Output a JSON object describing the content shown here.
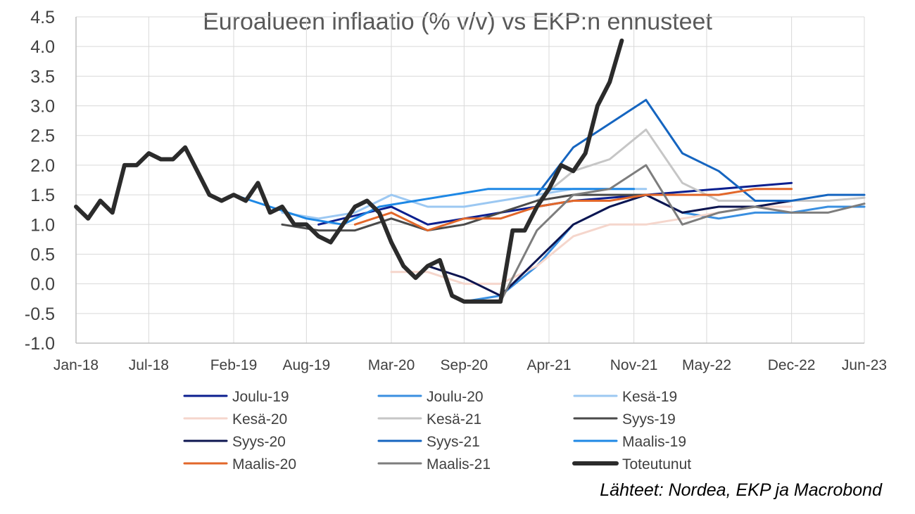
{
  "chart_data": {
    "type": "line",
    "title": "Euroalueen inflaatio (% v/v) vs EKP:n ennusteet",
    "source": "Lähteet: Nordea, EKP ja Macrobond",
    "xlabel": "",
    "ylabel": "",
    "ylim": [
      -1.0,
      4.5
    ],
    "yticks": [
      "-1.0",
      "-0.5",
      "0.0",
      "0.5",
      "1.0",
      "1.5",
      "2.0",
      "2.5",
      "3.0",
      "3.5",
      "4.0",
      "4.5"
    ],
    "xlim": [
      "2018-01",
      "2023-06"
    ],
    "xticks": [
      "Jan-18",
      "Jul-18",
      "Feb-19",
      "Aug-19",
      "Mar-20",
      "Sep-20",
      "Apr-21",
      "Nov-21",
      "May-22",
      "Dec-22",
      "Jun-23"
    ],
    "grid": "horizontal and vertical",
    "legend_placement": "bottom",
    "series": [
      {
        "name": "Joulu-19",
        "color": "#0b1f8f",
        "width": 3,
        "points": [
          [
            "2019-09",
            1.0
          ],
          [
            "2020-03",
            1.3
          ],
          [
            "2020-06",
            1.0
          ],
          [
            "2020-12",
            1.2
          ],
          [
            "2021-06",
            1.4
          ],
          [
            "2021-12",
            1.5
          ],
          [
            "2022-06",
            1.6
          ],
          [
            "2022-12",
            1.7
          ]
        ]
      },
      {
        "name": "Joulu-20",
        "color": "#3a8fe0",
        "width": 3,
        "points": [
          [
            "2020-09",
            -0.3
          ],
          [
            "2020-12",
            -0.2
          ],
          [
            "2021-03",
            0.3
          ],
          [
            "2021-06",
            1.0
          ],
          [
            "2021-09",
            1.3
          ],
          [
            "2021-12",
            1.5
          ],
          [
            "2022-03",
            1.2
          ],
          [
            "2022-06",
            1.1
          ],
          [
            "2022-09",
            1.2
          ],
          [
            "2022-12",
            1.2
          ],
          [
            "2023-03",
            1.3
          ],
          [
            "2023-06",
            1.3
          ]
        ]
      },
      {
        "name": "Kesä-19",
        "color": "#9cc8f2",
        "width": 3,
        "points": [
          [
            "2019-06",
            1.2
          ],
          [
            "2019-09",
            1.1
          ],
          [
            "2019-12",
            1.2
          ],
          [
            "2020-03",
            1.5
          ],
          [
            "2020-06",
            1.3
          ],
          [
            "2020-09",
            1.3
          ],
          [
            "2020-12",
            1.4
          ],
          [
            "2021-03",
            1.5
          ],
          [
            "2021-06",
            1.6
          ],
          [
            "2021-09",
            1.6
          ],
          [
            "2021-12",
            1.6
          ]
        ]
      },
      {
        "name": "Kesä-20",
        "color": "#f5d6cc",
        "width": 3,
        "points": [
          [
            "2020-03",
            0.2
          ],
          [
            "2020-06",
            0.2
          ],
          [
            "2020-09",
            0.0
          ],
          [
            "2020-12",
            0.0
          ],
          [
            "2021-03",
            0.3
          ],
          [
            "2021-06",
            0.8
          ],
          [
            "2021-09",
            1.0
          ],
          [
            "2021-12",
            1.0
          ],
          [
            "2022-03",
            1.1
          ],
          [
            "2022-06",
            1.2
          ],
          [
            "2022-09",
            1.3
          ],
          [
            "2022-12",
            1.3
          ]
        ]
      },
      {
        "name": "Kesä-21",
        "color": "#c6c6c6",
        "width": 3,
        "points": [
          [
            "2021-03",
            1.4
          ],
          [
            "2021-06",
            1.9
          ],
          [
            "2021-09",
            2.1
          ],
          [
            "2021-12",
            2.6
          ],
          [
            "2022-03",
            1.7
          ],
          [
            "2022-06",
            1.4
          ],
          [
            "2022-09",
            1.4
          ],
          [
            "2022-12",
            1.4
          ],
          [
            "2023-03",
            1.4
          ],
          [
            "2023-06",
            1.45
          ]
        ]
      },
      {
        "name": "Syys-19",
        "color": "#4a4a4a",
        "width": 3,
        "points": [
          [
            "2019-06",
            1.0
          ],
          [
            "2019-09",
            0.9
          ],
          [
            "2019-12",
            0.9
          ],
          [
            "2020-03",
            1.1
          ],
          [
            "2020-06",
            0.9
          ],
          [
            "2020-09",
            1.0
          ],
          [
            "2020-12",
            1.2
          ],
          [
            "2021-03",
            1.4
          ],
          [
            "2021-06",
            1.5
          ],
          [
            "2021-09",
            1.5
          ],
          [
            "2021-12",
            1.5
          ]
        ]
      },
      {
        "name": "Syys-20",
        "color": "#0d1550",
        "width": 3,
        "points": [
          [
            "2020-06",
            0.3
          ],
          [
            "2020-09",
            0.1
          ],
          [
            "2020-12",
            -0.2
          ],
          [
            "2021-03",
            0.4
          ],
          [
            "2021-06",
            1.0
          ],
          [
            "2021-09",
            1.3
          ],
          [
            "2021-12",
            1.5
          ],
          [
            "2022-03",
            1.2
          ],
          [
            "2022-06",
            1.3
          ],
          [
            "2022-09",
            1.3
          ],
          [
            "2022-12",
            1.4
          ]
        ]
      },
      {
        "name": "Syys-21",
        "color": "#1565c0",
        "width": 3,
        "points": [
          [
            "2021-03",
            1.5
          ],
          [
            "2021-06",
            2.3
          ],
          [
            "2021-09",
            2.7
          ],
          [
            "2021-12",
            3.1
          ],
          [
            "2022-03",
            2.2
          ],
          [
            "2022-06",
            1.9
          ],
          [
            "2022-09",
            1.4
          ],
          [
            "2022-12",
            1.4
          ],
          [
            "2023-03",
            1.5
          ],
          [
            "2023-06",
            1.5
          ]
        ]
      },
      {
        "name": "Maalis-19",
        "color": "#1e88e5",
        "width": 3,
        "points": [
          [
            "2019-02",
            1.5
          ],
          [
            "2019-05",
            1.3
          ],
          [
            "2019-08",
            1.1
          ],
          [
            "2019-11",
            1.0
          ],
          [
            "2020-02",
            1.3
          ],
          [
            "2020-05",
            1.4
          ],
          [
            "2020-08",
            1.5
          ],
          [
            "2020-11",
            1.6
          ],
          [
            "2021-02",
            1.6
          ],
          [
            "2021-05",
            1.6
          ],
          [
            "2021-08",
            1.6
          ],
          [
            "2021-11",
            1.6
          ]
        ]
      },
      {
        "name": "Maalis-20",
        "color": "#e2672a",
        "width": 3,
        "points": [
          [
            "2019-12",
            1.0
          ],
          [
            "2020-03",
            1.2
          ],
          [
            "2020-06",
            0.9
          ],
          [
            "2020-09",
            1.1
          ],
          [
            "2020-12",
            1.1
          ],
          [
            "2021-03",
            1.3
          ],
          [
            "2021-06",
            1.4
          ],
          [
            "2021-09",
            1.4
          ],
          [
            "2021-12",
            1.5
          ],
          [
            "2022-03",
            1.5
          ],
          [
            "2022-06",
            1.5
          ],
          [
            "2022-09",
            1.6
          ],
          [
            "2022-12",
            1.6
          ]
        ]
      },
      {
        "name": "Maalis-21",
        "color": "#7d7d7d",
        "width": 3,
        "points": [
          [
            "2020-12",
            -0.3
          ],
          [
            "2021-03",
            0.9
          ],
          [
            "2021-06",
            1.5
          ],
          [
            "2021-09",
            1.6
          ],
          [
            "2021-12",
            2.0
          ],
          [
            "2022-03",
            1.0
          ],
          [
            "2022-06",
            1.2
          ],
          [
            "2022-09",
            1.3
          ],
          [
            "2022-12",
            1.2
          ],
          [
            "2023-03",
            1.2
          ],
          [
            "2023-06",
            1.35
          ]
        ]
      },
      {
        "name": "Toteutunut",
        "color": "#2b2b2b",
        "width": 6,
        "points": [
          [
            "2018-01",
            1.3
          ],
          [
            "2018-02",
            1.1
          ],
          [
            "2018-03",
            1.4
          ],
          [
            "2018-04",
            1.2
          ],
          [
            "2018-05",
            2.0
          ],
          [
            "2018-06",
            2.0
          ],
          [
            "2018-07",
            2.2
          ],
          [
            "2018-08",
            2.1
          ],
          [
            "2018-09",
            2.1
          ],
          [
            "2018-10",
            2.3
          ],
          [
            "2018-11",
            1.9
          ],
          [
            "2018-12",
            1.5
          ],
          [
            "2019-01",
            1.4
          ],
          [
            "2019-02",
            1.5
          ],
          [
            "2019-03",
            1.4
          ],
          [
            "2019-04",
            1.7
          ],
          [
            "2019-05",
            1.2
          ],
          [
            "2019-06",
            1.3
          ],
          [
            "2019-07",
            1.0
          ],
          [
            "2019-08",
            1.0
          ],
          [
            "2019-09",
            0.8
          ],
          [
            "2019-10",
            0.7
          ],
          [
            "2019-11",
            1.0
          ],
          [
            "2019-12",
            1.3
          ],
          [
            "2020-01",
            1.4
          ],
          [
            "2020-02",
            1.2
          ],
          [
            "2020-03",
            0.7
          ],
          [
            "2020-04",
            0.3
          ],
          [
            "2020-05",
            0.1
          ],
          [
            "2020-06",
            0.3
          ],
          [
            "2020-07",
            0.4
          ],
          [
            "2020-08",
            -0.2
          ],
          [
            "2020-09",
            -0.3
          ],
          [
            "2020-10",
            -0.3
          ],
          [
            "2020-11",
            -0.3
          ],
          [
            "2020-12",
            -0.3
          ],
          [
            "2021-01",
            0.9
          ],
          [
            "2021-02",
            0.9
          ],
          [
            "2021-03",
            1.3
          ],
          [
            "2021-04",
            1.6
          ],
          [
            "2021-05",
            2.0
          ],
          [
            "2021-06",
            1.9
          ],
          [
            "2021-07",
            2.2
          ],
          [
            "2021-08",
            3.0
          ],
          [
            "2021-09",
            3.4
          ],
          [
            "2021-10",
            4.1
          ]
        ]
      }
    ]
  }
}
